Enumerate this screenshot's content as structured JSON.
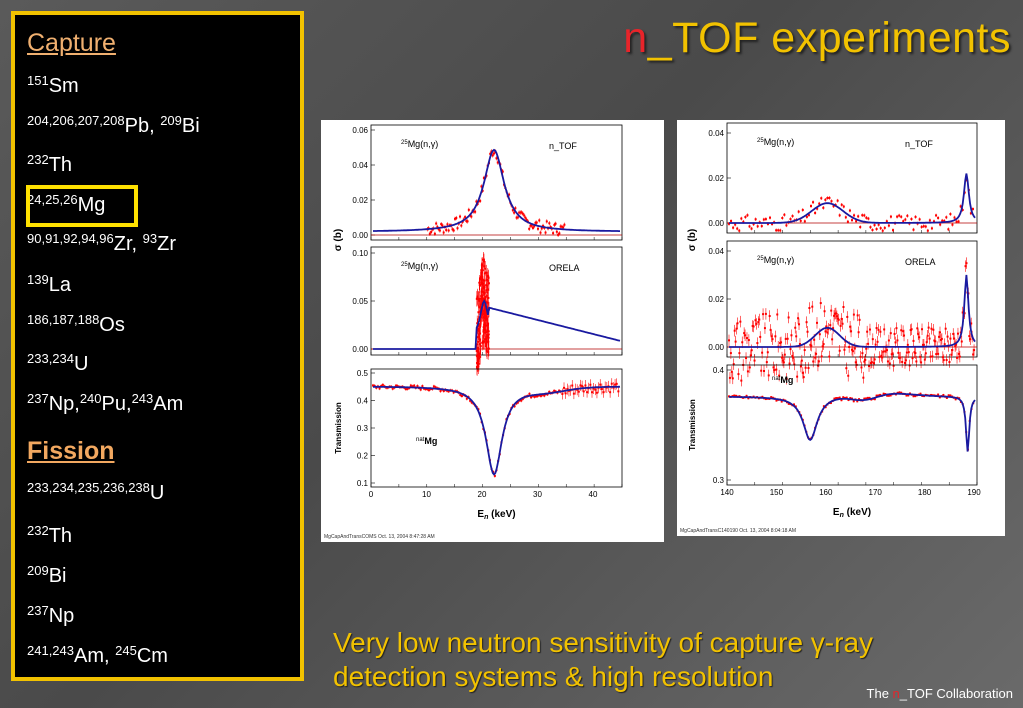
{
  "slide": {
    "title_n": "n",
    "title_rest": "_TOF experiments",
    "caption_line1": "Very low neutron sensitivity of capture γ-ray",
    "caption_line2": "detection systems & high resolution",
    "credit_pre": "The ",
    "credit_n": "n",
    "credit_rest": "_TOF Collaboration"
  },
  "sidebar": {
    "capture_heading": "Capture",
    "fission_heading": "Fission",
    "capture_items": [
      {
        "sup": "151",
        "el": "Sm"
      },
      {
        "sup": "204,206,207,208",
        "el": "Pb, ",
        "sup2": "209",
        "el2": "Bi"
      },
      {
        "sup": "232",
        "el": "Th"
      },
      {
        "sup": "24,25,26",
        "el": "Mg"
      },
      {
        "sup": "90,91,92,94,96",
        "el": "Zr, ",
        "sup2": "93",
        "el2": "Zr"
      },
      {
        "sup": "139",
        "el": "La"
      },
      {
        "sup": "186,187,188",
        "el": "Os"
      },
      {
        "sup": "233,234",
        "el": "U"
      },
      {
        "sup": "237",
        "el": "Np,",
        "sup2": "240",
        "el2": "Pu,",
        "sup3": "243",
        "el3": "Am"
      }
    ],
    "fission_items": [
      {
        "sup": "233,234,235,236,238",
        "el": "U"
      },
      {
        "sup": "232",
        "el": "Th"
      },
      {
        "sup": "209",
        "el": "Bi"
      },
      {
        "sup": "237",
        "el": "Np"
      },
      {
        "sup": "241,243",
        "el": "Am, ",
        "sup2": "245",
        "el2": "Cm"
      }
    ],
    "highlight_color": "#ffe100"
  },
  "figures": {
    "left": {
      "panel1": {
        "reaction": "Mg(n,γ)",
        "reaction_sup": "25",
        "facility": "n_TOF",
        "yticks": [
          "0.06",
          "0.04",
          "0.02",
          "0.00"
        ]
      },
      "panel2": {
        "reaction": "Mg(n,γ)",
        "reaction_sup": "25",
        "facility": "ORELA",
        "yticks": [
          "0.10",
          "0.05",
          "0.00"
        ]
      },
      "panel3": {
        "sample": "Mg",
        "sample_sup": "nat",
        "yticks": [
          "0.5",
          "0.4",
          "0.3",
          "0.2",
          "0.1"
        ]
      },
      "xticks": [
        "0",
        "10",
        "20",
        "30",
        "40"
      ],
      "xlabel": "E",
      "xlabel_sub": "n",
      "xlabel_unit": " (keV)",
      "ylabel_sigma": "σ (b)",
      "ylabel_trans": "Transmission",
      "footer": "MgCapAndTransCOMS  Oct. 13, 2004  8:47:28 AM"
    },
    "right": {
      "panel1": {
        "reaction": "Mg(n,γ)",
        "reaction_sup": "25",
        "facility": "n_TOF",
        "yticks": [
          "0.04",
          "0.02",
          "0.00"
        ]
      },
      "panel2": {
        "reaction": "Mg(n,γ)",
        "reaction_sup": "25",
        "facility": "ORELA",
        "yticks": [
          "0.04",
          "0.02",
          "0.00"
        ]
      },
      "panel3": {
        "sample": "Mg",
        "sample_sup": "nat",
        "yticks": [
          "0.4",
          "0.3"
        ]
      },
      "xticks": [
        "140",
        "150",
        "160",
        "170",
        "180",
        "190"
      ],
      "xlabel": "E",
      "xlabel_sub": "n",
      "xlabel_unit": " (keV)",
      "ylabel_sigma": "σ (b)",
      "ylabel_trans": "Transmission",
      "footer": "MgCapAndTransC140190  Oct. 13, 2004  8:04:18 AM"
    }
  },
  "colors": {
    "accent": "#f2c200",
    "red": "#e8242a",
    "data_red": "#ff0000",
    "fit_blue": "#1a1aa0"
  }
}
